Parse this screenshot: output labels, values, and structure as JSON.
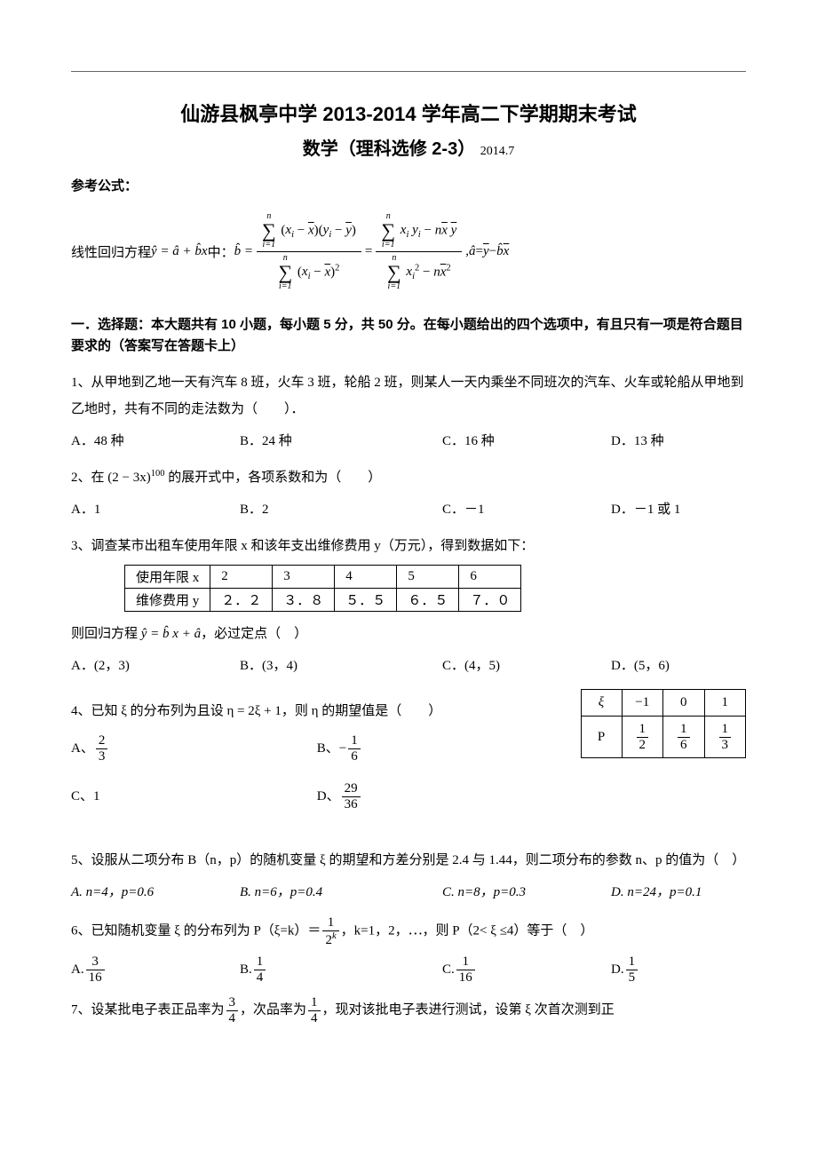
{
  "colors": {
    "text": "#000000",
    "background": "#ffffff",
    "rule": "#666666",
    "border": "#000000"
  },
  "typography": {
    "body_family": "SimSun",
    "heading_family": "SimHei",
    "title_size": 22,
    "subtitle_size": 20,
    "body_size": 15
  },
  "title": {
    "line1": "仙游县枫亭中学 2013-2014 学年高二下学期期末考试",
    "line2_main": "数学（理科选修 2-3）",
    "line2_date": "2014.7"
  },
  "formula_label": "参考公式：",
  "regression_text_prefix": "线性回归方程 ",
  "regression_text_mid": " 中：",
  "section1_heading": "一．选择题：本大题共有 10 小题，每小题 5 分，共 50 分。在每小题给出的四个选项中，有且只有一项是符合题目要求的（答案写在答题卡上）",
  "q1": {
    "text": "1、从甲地到乙地一天有汽车 8 班，火车 3 班，轮船 2 班，则某人一天内乘坐不同班次的汽车、火车或轮船从甲地到乙地时，共有不同的走法数为（　　）．",
    "opts": {
      "a": "A．48 种",
      "b": "B．24 种",
      "c": "C．16 种",
      "d": "D．13 种"
    }
  },
  "q2": {
    "prefix": "2、在 ",
    "expr": "(2 − 3x)",
    "exp": "100",
    "suffix": " 的展开式中，各项系数和为（　　）",
    "opts": {
      "a": "A．1",
      "b": "B．2",
      "c": "C．－1",
      "d": "D．－1 或 1"
    }
  },
  "q3": {
    "text": "3、调查某市出租车使用年限 x 和该年支出维修费用 y（万元），得到数据如下：",
    "table": {
      "row1_label": "使用年限 x",
      "row1": [
        "2",
        "3",
        "4",
        "5",
        "6"
      ],
      "row2_label": "维修费用 y",
      "row2": [
        "２．２",
        "３．８",
        "５．５",
        "６．５",
        "７．０"
      ]
    },
    "suffix_pre": "则回归方程 ",
    "suffix_post": "，必过定点（　）",
    "opts": {
      "a": "A．(2，3)",
      "b": "B．(3，4)",
      "c": "C．(4，5)",
      "d": "D．(5，6)"
    }
  },
  "q4": {
    "prefix": "4、已知 ξ 的分布列为且设 η = 2ξ + 1，则 η 的期望值是（　　）",
    "table": {
      "header": [
        "ξ",
        "−1",
        "0",
        "1"
      ],
      "row_label": "P",
      "probs_num": [
        "1",
        "1",
        "1"
      ],
      "probs_den": [
        "2",
        "6",
        "3"
      ]
    },
    "opts": {
      "a_label": "A、",
      "a_num": "2",
      "a_den": "3",
      "b_label": "B、",
      "b_sign": "−",
      "b_num": "1",
      "b_den": "6",
      "c_label": "C、1",
      "d_label": "D、",
      "d_num": "29",
      "d_den": "36"
    }
  },
  "q5": {
    "text": "5、设服从二项分布 B（n，p）的随机变量 ξ 的期望和方差分别是 2.4 与 1.44，则二项分布的参数 n、p 的值为（　）",
    "opts": {
      "a": "A. n=4，p=0.6",
      "b": "B. n=6，p=0.4",
      "c": "C. n=8，p=0.3",
      "d": "D. n=24，p=0.1"
    }
  },
  "q6": {
    "prefix": "6、已知随机变量 ξ 的分布列为 P（ξ=k）＝",
    "frac_num": "1",
    "frac_den_base": "2",
    "frac_den_exp": "k",
    "suffix": "，k=1，2，⋯，则 P（2< ξ ≤4）等于（　）",
    "opts": {
      "a_label": "A. ",
      "a_num": "3",
      "a_den": "16",
      "b_label": "B. ",
      "b_num": "1",
      "b_den": "4",
      "c_label": "C. ",
      "c_num": "1",
      "c_den": "16",
      "d_label": "D. ",
      "d_num": "1",
      "d_den": "5"
    }
  },
  "q7": {
    "prefix": "7、设某批电子表正品率为",
    "p1_num": "3",
    "p1_den": "4",
    "mid": "，次品率为",
    "p2_num": "1",
    "p2_den": "4",
    "suffix": "，现对该批电子表进行测试，设第 ξ 次首次测到正"
  }
}
